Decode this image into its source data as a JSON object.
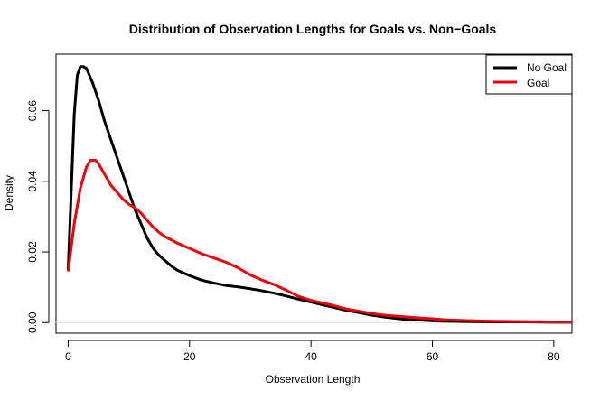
{
  "chart_data": {
    "type": "line",
    "title": "Distribution of Observation Lengths for Goals vs. Non−Goals",
    "xlabel": "Observation Length",
    "ylabel": "Density",
    "xlim": [
      -2,
      83
    ],
    "ylim": [
      -0.003,
      0.076
    ],
    "xticks": [
      0,
      20,
      40,
      60,
      80
    ],
    "xtick_labels": [
      "0",
      "20",
      "40",
      "60",
      "80"
    ],
    "yticks": [
      0.0,
      0.02,
      0.04,
      0.06
    ],
    "ytick_labels": [
      "0.00",
      "0.02",
      "0.04",
      "0.06"
    ],
    "grid": false,
    "legend_position": "top-right",
    "series": [
      {
        "name": "No Goal",
        "color": "#000000",
        "x": [
          0,
          1,
          1.5,
          2,
          2.5,
          3,
          4,
          5,
          6,
          7,
          8,
          9,
          10,
          11,
          12,
          13,
          14,
          15,
          16,
          17,
          18,
          20,
          22,
          24,
          26,
          28,
          30,
          32,
          34,
          36,
          38,
          40,
          42,
          44,
          46,
          48,
          50,
          52,
          55,
          58,
          60,
          62,
          65,
          70,
          75,
          80,
          83
        ],
        "y": [
          0.015,
          0.059,
          0.07,
          0.0725,
          0.0725,
          0.072,
          0.068,
          0.063,
          0.057,
          0.052,
          0.047,
          0.042,
          0.037,
          0.032,
          0.028,
          0.024,
          0.021,
          0.019,
          0.0175,
          0.016,
          0.0148,
          0.0133,
          0.012,
          0.0112,
          0.0105,
          0.0101,
          0.0096,
          0.009,
          0.0083,
          0.0075,
          0.0066,
          0.0058,
          0.005,
          0.0042,
          0.0034,
          0.0028,
          0.0021,
          0.0016,
          0.001,
          0.0007,
          0.0005,
          0.0004,
          0.0003,
          0.0002,
          0.0002,
          0.0001,
          0.0001
        ]
      },
      {
        "name": "Goal",
        "color": "#e8000b",
        "x": [
          0,
          1,
          2,
          3,
          3.7,
          4.5,
          5,
          6,
          7,
          8,
          9,
          10,
          11,
          12,
          13,
          14,
          15,
          16,
          18,
          20,
          22,
          24,
          26,
          28,
          30,
          32,
          34,
          36,
          38,
          40,
          42,
          44,
          46,
          48,
          50,
          52,
          55,
          58,
          60,
          62,
          65,
          70,
          75,
          80,
          83
        ],
        "y": [
          0.0145,
          0.028,
          0.038,
          0.044,
          0.046,
          0.046,
          0.045,
          0.042,
          0.039,
          0.037,
          0.035,
          0.0335,
          0.0325,
          0.031,
          0.029,
          0.027,
          0.0255,
          0.0243,
          0.0225,
          0.021,
          0.0195,
          0.0183,
          0.0171,
          0.0155,
          0.0135,
          0.012,
          0.0107,
          0.0091,
          0.0074,
          0.0063,
          0.0055,
          0.0047,
          0.0038,
          0.0032,
          0.0026,
          0.0021,
          0.0017,
          0.0013,
          0.0011,
          0.0008,
          0.0006,
          0.0004,
          0.0003,
          0.0002,
          0.0002
        ]
      }
    ]
  }
}
